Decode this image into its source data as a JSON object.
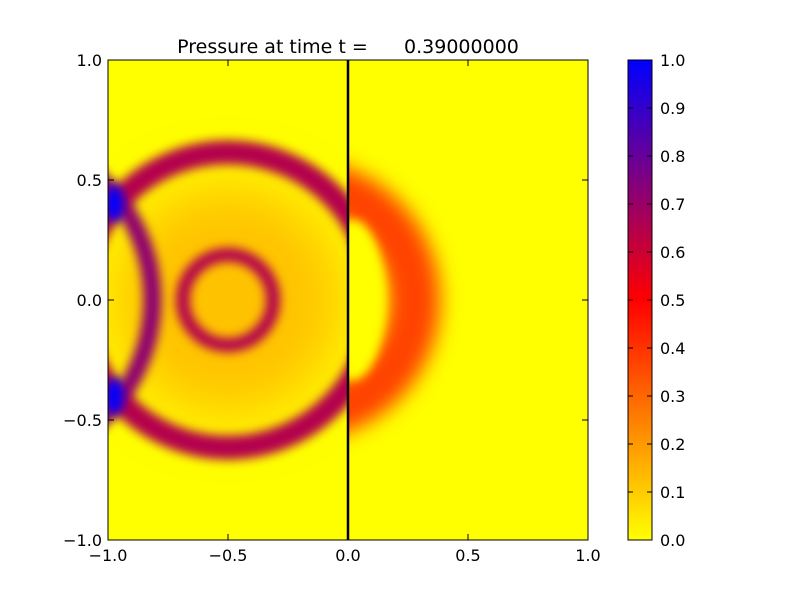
{
  "chart_data": {
    "type": "heatmap",
    "title": "Pressure at time t =      0.39000000",
    "xlabel": "",
    "ylabel": "",
    "xlim": [
      -1.0,
      1.0
    ],
    "ylim": [
      -1.0,
      1.0
    ],
    "x_ticks": [
      -1.0,
      -0.5,
      0.0,
      0.5,
      1.0
    ],
    "x_tick_labels": [
      "−1.0",
      "−0.5",
      "0.0",
      "0.5",
      "1.0"
    ],
    "y_ticks": [
      -1.0,
      -0.5,
      0.0,
      0.5,
      1.0
    ],
    "y_tick_labels": [
      "−1.0",
      "−0.5",
      "0.0",
      "0.5",
      "1.0"
    ],
    "grid": false,
    "colorbar": {
      "range": [
        0.0,
        1.0
      ],
      "ticks": [
        0.0,
        0.1,
        0.2,
        0.3,
        0.4,
        0.5,
        0.6,
        0.7,
        0.8,
        0.9,
        1.0
      ],
      "tick_labels": [
        "0.0",
        "0.1",
        "0.2",
        "0.3",
        "0.4",
        "0.5",
        "0.6",
        "0.7",
        "0.8",
        "0.9",
        "1.0"
      ],
      "colors": [
        "#ffff00",
        "#ff0000",
        "#0000ff"
      ]
    },
    "interface_x": 0.0,
    "features": {
      "inner_ring": {
        "center": [
          -0.5,
          0.0
        ],
        "radius": 0.18,
        "pressure": 0.65
      },
      "outer_ring": {
        "center": [
          -0.5,
          0.0
        ],
        "radius": 0.64,
        "pressure": 0.65
      },
      "reflected_arc": {
        "center": [
          -1.5,
          0.0
        ],
        "radius": 0.66,
        "pressure": 0.72
      },
      "transmitted_ring": {
        "center": [
          -0.2,
          0.0
        ],
        "radius": 0.55,
        "pressure": 0.37
      },
      "corner_peaks": [
        {
          "x": -1.0,
          "y": 0.4,
          "pressure": 1.0
        },
        {
          "x": -1.0,
          "y": -0.4,
          "pressure": 1.0
        }
      ]
    }
  }
}
